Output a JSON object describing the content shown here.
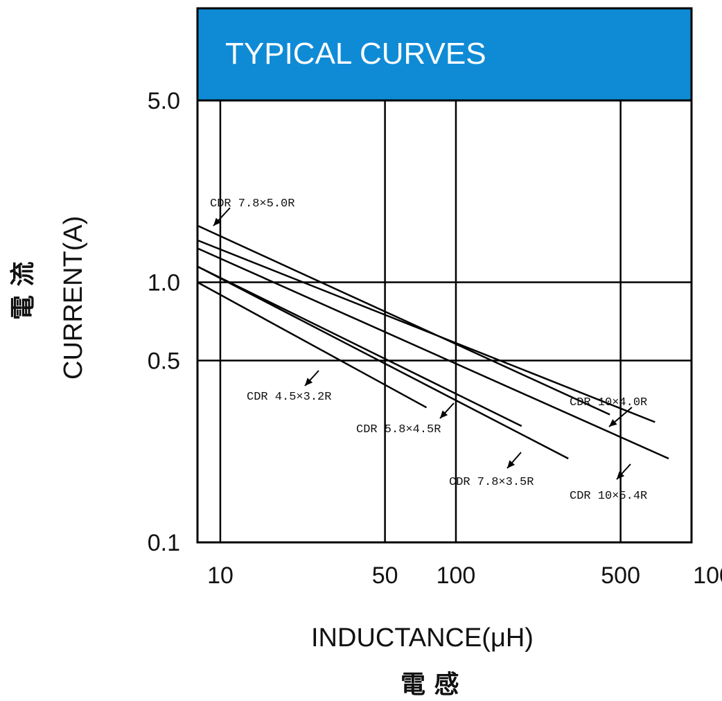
{
  "chart_data": {
    "type": "line",
    "title": "TYPICAL CURVES",
    "xlabel": "INDUCTANCE(μH)",
    "xlabel_cjk": "電 感",
    "ylabel": "CURRENT(A)",
    "ylabel_cjk": "電 流",
    "x_scale": "log",
    "y_scale": "log",
    "xlim": [
      8,
      1000
    ],
    "ylim": [
      0.1,
      5.0
    ],
    "x_ticks": [
      10,
      50,
      100,
      500,
      1000
    ],
    "x_tick_labels": [
      "10",
      "50",
      "100",
      "500",
      "1000"
    ],
    "y_ticks": [
      0.1,
      0.5,
      1.0,
      5.0
    ],
    "y_tick_labels": [
      "0.1",
      "0.5",
      "1.0",
      "5.0"
    ],
    "grid": true,
    "colors": {
      "header": "#0f8bd6",
      "lines": "#000000"
    },
    "series": [
      {
        "name": "CDR 7.8×5.0R",
        "x": [
          8,
          450
        ],
        "y": [
          1.65,
          0.31
        ]
      },
      {
        "name": "CDR 10×4.0R",
        "x": [
          8,
          700
        ],
        "y": [
          1.45,
          0.29
        ]
      },
      {
        "name": "CDR 10×5.4R",
        "x": [
          8,
          800
        ],
        "y": [
          1.35,
          0.21
        ]
      },
      {
        "name": "CDR 4.5×3.2R",
        "x": [
          8,
          75
        ],
        "y": [
          1.0,
          0.33
        ]
      },
      {
        "name": "CDR 5.8×4.5R",
        "x": [
          8,
          190
        ],
        "y": [
          1.15,
          0.28
        ]
      },
      {
        "name": "CDR 7.8×3.5R",
        "x": [
          8,
          300
        ],
        "y": [
          1.15,
          0.21
        ]
      }
    ]
  }
}
